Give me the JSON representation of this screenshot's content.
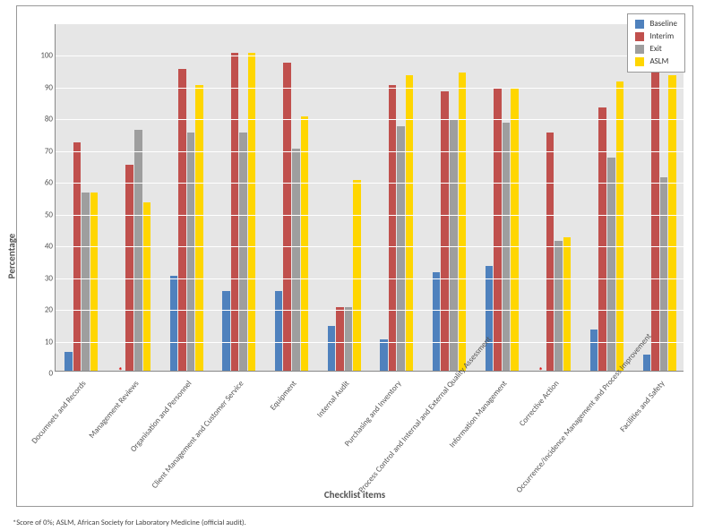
{
  "chart": {
    "type": "bar",
    "ylabel": "Percentage",
    "xlabel": "Checklist items",
    "ylim": [
      0,
      110
    ],
    "yticks": [
      0,
      10,
      20,
      30,
      40,
      50,
      60,
      70,
      80,
      90,
      100
    ],
    "background_color": "#e6e6e6",
    "grid_color": "#ffffff",
    "axis_color": "#888888",
    "label_fontsize": 11,
    "tick_fontsize": 9,
    "series": [
      {
        "key": "baseline",
        "label": "Baseline",
        "color": "#4f81bd"
      },
      {
        "key": "interim",
        "label": "Interim",
        "color": "#c0504d"
      },
      {
        "key": "exit",
        "label": "Exit",
        "color": "#9e9e9e"
      },
      {
        "key": "aslm",
        "label": "ASLM",
        "color": "#ffd600"
      }
    ],
    "categories": [
      {
        "label": "Documnets and Records"
      },
      {
        "label": "Management Reviews",
        "star": true
      },
      {
        "label": "Organisation and Personnel"
      },
      {
        "label": "Client Management and Customer Service"
      },
      {
        "label": "Equipment"
      },
      {
        "label": "Internal Audit"
      },
      {
        "label": "Purchasing and Inventory"
      },
      {
        "label": "Process Control and Internal and External Quality Assessment"
      },
      {
        "label": "Information Management"
      },
      {
        "label": "Corrective Action",
        "star": true
      },
      {
        "label": "Occurrence/Incidence Management and Process Improvement"
      },
      {
        "label": "Facilities and Safety"
      }
    ],
    "data": {
      "baseline": [
        6,
        0,
        30,
        25,
        25,
        14,
        10,
        31,
        33,
        0,
        13,
        5
      ],
      "interim": [
        72,
        65,
        95,
        100,
        97,
        20,
        90,
        88,
        89,
        75,
        83,
        98
      ],
      "exit": [
        56,
        76,
        75,
        75,
        70,
        20,
        77,
        79,
        78,
        41,
        67,
        61
      ],
      "aslm": [
        56,
        53,
        90,
        100,
        80,
        60,
        93,
        94,
        89,
        42,
        91,
        93
      ]
    },
    "legend_position": "top-right",
    "bar_gap": 0.35
  },
  "footnote": "*Score of 0%; ASLM, African Society for Laboratory Medicine (official audit)."
}
